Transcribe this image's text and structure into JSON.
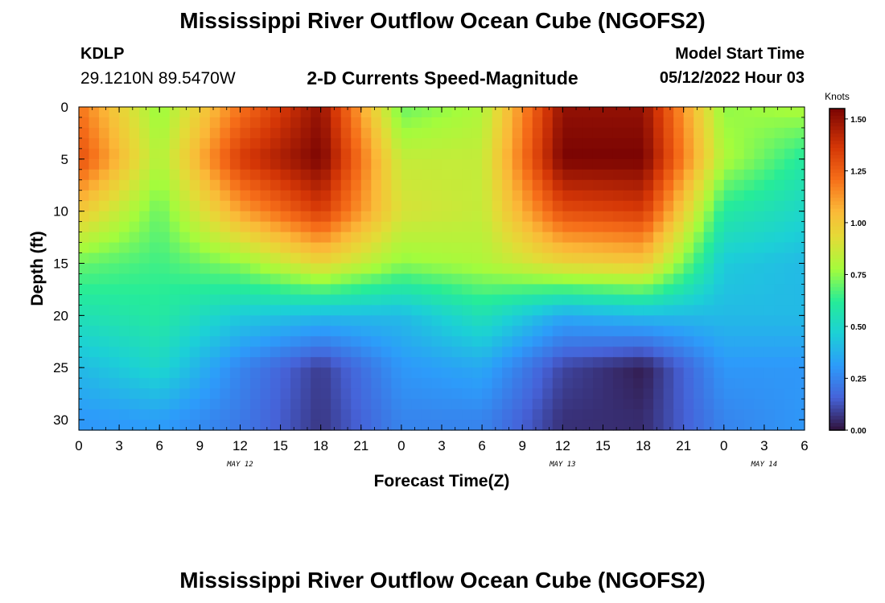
{
  "header": {
    "title_top": "Mississippi River Outflow Ocean Cube (NGOFS2)",
    "station_id": "KDLP",
    "coordinates": "29.1210N  89.5470W",
    "subtitle": "2-D Currents Speed-Magnitude",
    "model_start_label": "Model Start Time",
    "model_start_value": "05/12/2022 Hour 03",
    "title_bottom": "Mississippi River Outflow Ocean Cube (NGOFS2)"
  },
  "chart_data": {
    "type": "heatmap",
    "xlabel": "Forecast Time(Z)",
    "ylabel": "Depth (ft)",
    "x_ticks": [
      "0",
      "3",
      "6",
      "9",
      "12",
      "15",
      "18",
      "21",
      "0",
      "3",
      "6",
      "9",
      "12",
      "15",
      "18",
      "21",
      "0",
      "3",
      "6"
    ],
    "x_range_hours": [
      0,
      54
    ],
    "date_labels": [
      {
        "label": "MAY 12",
        "hour": 12
      },
      {
        "label": "MAY 13",
        "hour": 36
      },
      {
        "label": "MAY 14",
        "hour": 51
      }
    ],
    "y_ticks": [
      "0",
      "5",
      "10",
      "15",
      "20",
      "25",
      "30"
    ],
    "y_range_ft": [
      0,
      31
    ],
    "colorbar": {
      "unit": "Knots",
      "min": 0,
      "max": 1.55,
      "tick_labels": [
        "1.50",
        "1.25",
        "1.00",
        "0.75",
        "0.50",
        "0.25",
        "0.00"
      ],
      "tick_values": [
        1.5,
        1.25,
        1.0,
        0.75,
        0.5,
        0.25,
        0.0
      ],
      "colormap": "turbo"
    },
    "speed_knots": {
      "hours": [
        0,
        6,
        12,
        18,
        24,
        30,
        36,
        42,
        48,
        54
      ],
      "depths_ft": [
        0,
        5,
        10,
        15,
        20,
        25,
        30
      ],
      "values": [
        [
          1.2,
          0.75,
          1.2,
          1.5,
          0.7,
          0.8,
          1.5,
          1.5,
          0.75,
          0.8
        ],
        [
          1.3,
          0.8,
          1.35,
          1.55,
          0.85,
          0.85,
          1.55,
          1.55,
          0.8,
          0.6
        ],
        [
          1.0,
          0.7,
          1.1,
          1.35,
          0.9,
          0.85,
          1.3,
          1.35,
          0.6,
          0.5
        ],
        [
          0.7,
          0.65,
          0.75,
          0.95,
          0.75,
          0.8,
          0.95,
          1.0,
          0.45,
          0.4
        ],
        [
          0.55,
          0.6,
          0.45,
          0.4,
          0.4,
          0.55,
          0.35,
          0.4,
          0.4,
          0.4
        ],
        [
          0.4,
          0.5,
          0.25,
          0.08,
          0.3,
          0.35,
          0.1,
          0.02,
          0.3,
          0.3
        ],
        [
          0.3,
          0.32,
          0.22,
          0.07,
          0.25,
          0.25,
          0.06,
          0.05,
          0.25,
          0.3
        ]
      ]
    }
  }
}
